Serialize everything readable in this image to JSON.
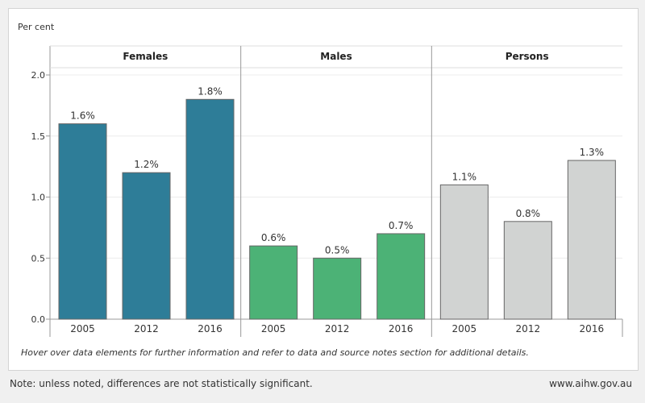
{
  "chart_data": {
    "type": "bar",
    "ylabel": "Per cent",
    "ylim": [
      0,
      2.0
    ],
    "yticks": [
      "0.0",
      "0.5",
      "1.0",
      "1.5",
      "2.0"
    ],
    "ytick_values": [
      0,
      0.5,
      1.0,
      1.5,
      2.0
    ],
    "categories": [
      "2005",
      "2012",
      "2016"
    ],
    "series": [
      {
        "name": "Females",
        "values": [
          1.6,
          1.2,
          1.8
        ],
        "labels": [
          "1.6%",
          "1.2%",
          "1.8%"
        ],
        "color": "#2e7d98"
      },
      {
        "name": "Males",
        "values": [
          0.6,
          0.5,
          0.7
        ],
        "labels": [
          "0.6%",
          "0.5%",
          "0.7%"
        ],
        "color": "#4cb276"
      },
      {
        "name": "Persons",
        "values": [
          1.1,
          0.8,
          1.3
        ],
        "labels": [
          "1.1%",
          "0.8%",
          "1.3%"
        ],
        "color": "#d1d3d2"
      }
    ],
    "grid": true
  },
  "hover_note": "Hover over data elements for further information and refer to data and source notes section for additional details.",
  "footer": {
    "note": "Note: unless noted, differences are not statistically significant.",
    "site": "www.aihw.gov.au"
  }
}
